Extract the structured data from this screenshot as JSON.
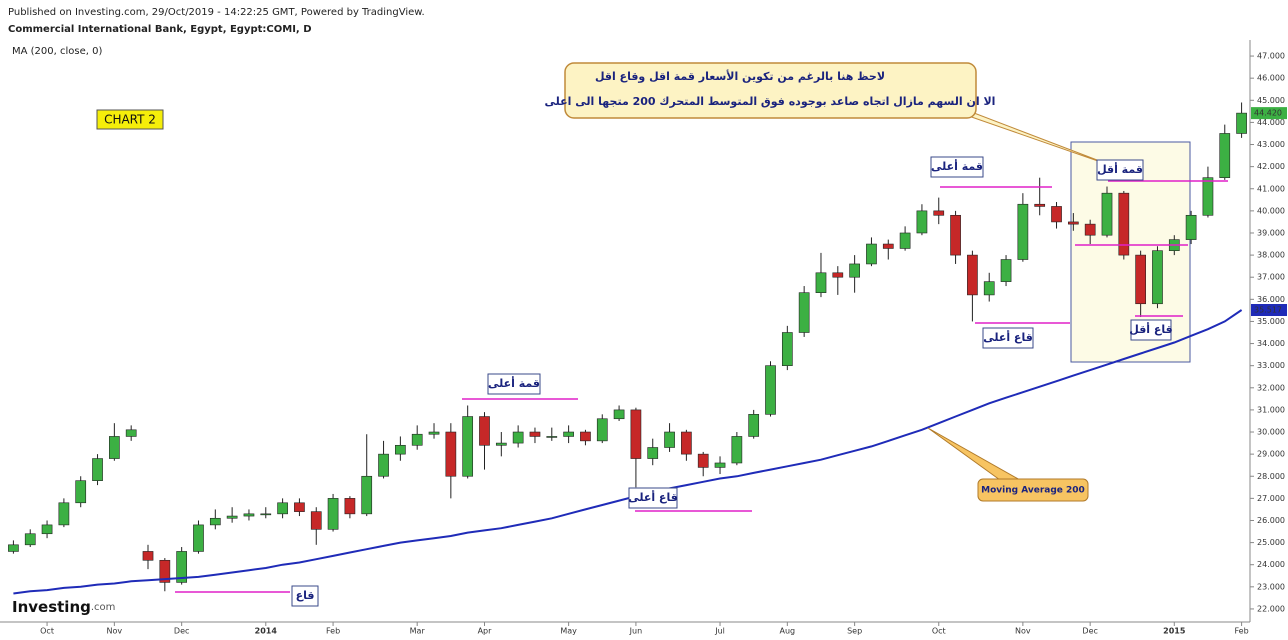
{
  "chart_data": {
    "type": "candlestick",
    "header": "Published on Investing.com, 29/Oct/2019 - 14:22:25 GMT, Powered by TradingView.",
    "title": "Commercial International Bank, Egypt, Egypt:COMI, D",
    "tag": "CHART 2",
    "logo": "Investing",
    "logo_suffix": ".com",
    "annotations": {
      "callout_1": "لاحظ هنا بالرغم من تكوين الأسعار قمة اقل وقاع اقل",
      "callout_2": "الا ان السهم مازال اتجاه صاعد بوجوده فوق المتوسط المتحرك 200 متجها الى اعلى",
      "ma_note": "Moving Average 200",
      "higher_high": "قمة أعلى",
      "higher_low": "قاع أعلى",
      "low": "قاع",
      "lower_high": "قمة أقل",
      "lower_low": "قاع أقل"
    },
    "categories": [
      null,
      null,
      "Oct",
      null,
      null,
      null,
      "Nov",
      null,
      null,
      null,
      "Dec",
      null,
      null,
      null,
      null,
      "2014",
      null,
      null,
      null,
      "Feb",
      null,
      null,
      null,
      null,
      "Mar",
      null,
      null,
      null,
      "Apr",
      null,
      null,
      null,
      null,
      "May",
      null,
      null,
      null,
      "Jun",
      null,
      null,
      null,
      null,
      "Jul",
      null,
      null,
      null,
      "Aug",
      null,
      null,
      null,
      "Sep",
      null,
      null,
      null,
      null,
      "Oct",
      null,
      null,
      null,
      null,
      "Nov",
      null,
      null,
      null,
      "Dec",
      null,
      null,
      null,
      null,
      "2015",
      null,
      null,
      null,
      "Feb"
    ],
    "open": [
      24.6,
      24.9,
      25.4,
      25.8,
      26.8,
      27.8,
      28.8,
      29.8,
      24.6,
      24.2,
      23.2,
      24.6,
      25.8,
      26.1,
      26.2,
      26.3,
      26.3,
      26.8,
      26.4,
      25.6,
      27.0,
      26.3,
      28.0,
      29.0,
      29.4,
      29.9,
      30.0,
      28.0,
      30.7,
      29.4,
      29.5,
      30.0,
      29.8,
      29.8,
      30.0,
      29.6,
      30.6,
      31.0,
      28.8,
      29.3,
      30.0,
      29.0,
      28.4,
      28.6,
      29.8,
      30.8,
      33.0,
      34.5,
      36.3,
      37.2,
      37.0,
      37.6,
      38.5,
      38.3,
      39.0,
      40.0,
      39.8,
      38.0,
      36.2,
      36.8,
      37.8,
      40.3,
      40.2,
      39.5,
      39.4,
      38.9,
      40.8,
      38.0,
      35.8,
      38.2,
      38.7,
      39.8,
      41.5,
      43.5
    ],
    "high": [
      25.1,
      25.6,
      26.0,
      27.0,
      28.0,
      29.0,
      30.4,
      30.3,
      24.9,
      24.3,
      24.8,
      26.0,
      26.5,
      26.6,
      26.5,
      26.6,
      27.0,
      27.0,
      26.6,
      27.2,
      27.1,
      29.9,
      29.6,
      29.8,
      30.3,
      30.4,
      30.4,
      31.2,
      30.9,
      30.0,
      30.3,
      30.2,
      30.2,
      30.3,
      30.1,
      30.8,
      31.2,
      31.1,
      29.7,
      30.4,
      30.1,
      29.1,
      28.9,
      30.0,
      31.0,
      33.2,
      34.8,
      36.6,
      38.1,
      37.5,
      38.0,
      38.8,
      38.7,
      39.3,
      40.3,
      40.6,
      40.0,
      38.2,
      37.2,
      38.0,
      40.8,
      41.5,
      40.4,
      39.9,
      39.6,
      41.1,
      40.9,
      38.2,
      38.4,
      38.9,
      40.0,
      42.0,
      43.9,
      44.9
    ],
    "low": [
      24.5,
      24.8,
      25.2,
      25.7,
      26.6,
      27.6,
      28.7,
      29.6,
      23.8,
      22.8,
      23.1,
      24.5,
      25.6,
      25.9,
      26.0,
      26.1,
      26.1,
      26.2,
      24.9,
      25.5,
      26.1,
      26.2,
      27.9,
      28.7,
      29.2,
      29.7,
      27.0,
      27.9,
      28.3,
      28.9,
      29.3,
      29.5,
      29.6,
      29.5,
      29.4,
      29.5,
      30.5,
      27.5,
      28.5,
      29.1,
      28.7,
      28.0,
      28.1,
      28.5,
      29.7,
      30.7,
      32.8,
      34.3,
      36.1,
      36.2,
      36.3,
      37.5,
      37.8,
      38.2,
      38.9,
      39.4,
      37.6,
      35.0,
      35.9,
      36.6,
      37.7,
      39.8,
      39.2,
      39.1,
      38.5,
      38.8,
      37.8,
      35.2,
      35.6,
      38.0,
      38.5,
      39.7,
      41.4,
      43.3
    ],
    "close": [
      24.9,
      25.4,
      25.8,
      26.8,
      27.8,
      28.8,
      29.8,
      30.1,
      24.2,
      23.2,
      24.6,
      25.8,
      26.1,
      26.2,
      26.3,
      26.3,
      26.8,
      26.4,
      25.6,
      27.0,
      26.3,
      28.0,
      29.0,
      29.4,
      29.9,
      30.0,
      28.0,
      30.7,
      29.4,
      29.5,
      30.0,
      29.8,
      29.8,
      30.0,
      29.6,
      30.6,
      31.0,
      28.8,
      29.3,
      30.0,
      29.0,
      28.4,
      28.6,
      29.8,
      30.8,
      33.0,
      34.5,
      36.3,
      37.2,
      37.0,
      37.6,
      38.5,
      38.3,
      39.0,
      40.0,
      39.8,
      38.0,
      36.2,
      36.8,
      37.8,
      40.3,
      40.2,
      39.5,
      39.4,
      38.9,
      40.8,
      38.0,
      35.8,
      38.2,
      38.7,
      39.8,
      41.5,
      43.5,
      44.42
    ],
    "last_label": "44.420",
    "up_color": "#3cb043",
    "down_color": "#c62828",
    "ma": {
      "name": "MA (200, close, 0)",
      "color": "#1f2bb8",
      "last_label": "35.517",
      "values": [
        22.7,
        22.8,
        22.85,
        22.95,
        23.0,
        23.1,
        23.15,
        23.25,
        23.3,
        23.35,
        23.4,
        23.45,
        23.55,
        23.65,
        23.75,
        23.85,
        24.0,
        24.1,
        24.25,
        24.4,
        24.55,
        24.7,
        24.85,
        25.0,
        25.1,
        25.2,
        25.3,
        25.45,
        25.55,
        25.65,
        25.8,
        25.95,
        26.1,
        26.3,
        26.5,
        26.7,
        26.9,
        27.1,
        27.3,
        27.45,
        27.6,
        27.75,
        27.9,
        28.0,
        28.15,
        28.3,
        28.45,
        28.6,
        28.75,
        28.95,
        29.15,
        29.35,
        29.6,
        29.85,
        30.1,
        30.4,
        30.7,
        31.0,
        31.3,
        31.55,
        31.8,
        32.05,
        32.3,
        32.55,
        32.8,
        33.05,
        33.3,
        33.55,
        33.8,
        34.05,
        34.35,
        34.65,
        35.0,
        35.517
      ]
    },
    "ylim": [
      21.5,
      47.5
    ],
    "yticks": [
      {
        "value": 22,
        "label": "22.000"
      },
      {
        "value": 23,
        "label": "23.000"
      },
      {
        "value": 24,
        "label": "24.000"
      },
      {
        "value": 25,
        "label": "25.000"
      },
      {
        "value": 26,
        "label": "26.000"
      },
      {
        "value": 27,
        "label": "27.000"
      },
      {
        "value": 28,
        "label": "28.000"
      },
      {
        "value": 29,
        "label": "29.000"
      },
      {
        "value": 30,
        "label": "30.000"
      },
      {
        "value": 31,
        "label": "31.000"
      },
      {
        "value": 32,
        "label": "32.000"
      },
      {
        "value": 33,
        "label": "33.000"
      },
      {
        "value": 34,
        "label": "34.000"
      },
      {
        "value": 35,
        "label": "35.000"
      },
      {
        "value": 36,
        "label": "36.000"
      },
      {
        "value": 37,
        "label": "37.000"
      },
      {
        "value": 38,
        "label": "38.000"
      },
      {
        "value": 39,
        "label": "39.000"
      },
      {
        "value": 40,
        "label": "40.000"
      },
      {
        "value": 41,
        "label": "41.000"
      },
      {
        "value": 42,
        "label": "42.000"
      },
      {
        "value": 43,
        "label": "43.000"
      },
      {
        "value": 44,
        "label": "44.000"
      },
      {
        "value": 45,
        "label": "45.000"
      },
      {
        "value": 46,
        "label": "46.000"
      },
      {
        "value": 47,
        "label": "47.000"
      }
    ]
  }
}
